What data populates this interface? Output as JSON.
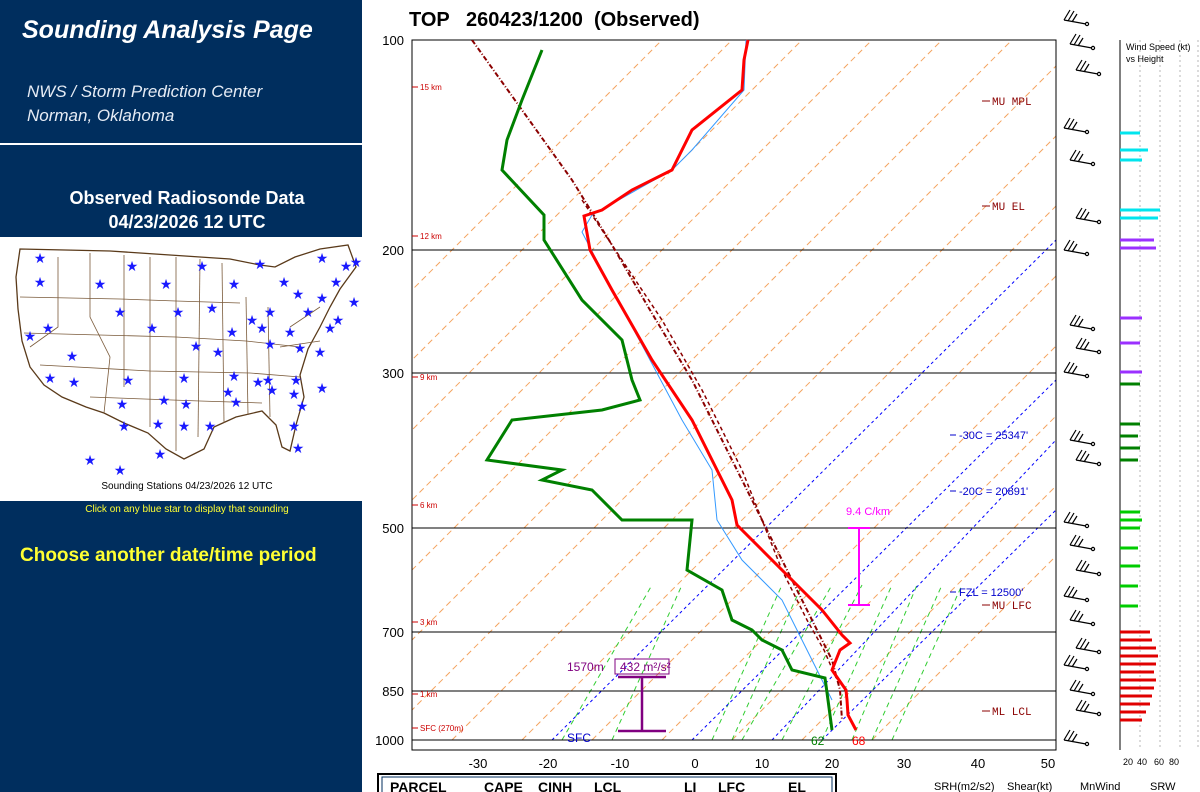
{
  "sidebar": {
    "app_title": "Sounding Analysis Page",
    "org_line1": "NWS / Storm Prediction Center",
    "org_line2": "Norman, Oklahoma",
    "data_title_line1": "Observed Radiosonde Data",
    "data_title_line2": "04/23/2026 12 UTC",
    "map_caption": "Sounding Stations 04/23/2026 12 UTC",
    "click_hint": "Click on any blue star to display that sounding",
    "choose_link": "Choose another date/time period",
    "station_icon": "blue-star-icon"
  },
  "skewt": {
    "title": "TOP   260423/1200  (Observed)",
    "pressure_labels": [
      "100",
      "200",
      "300",
      "500",
      "700",
      "850",
      "1000"
    ],
    "temp_labels": [
      "-30",
      "-20",
      "-10",
      "0",
      "10",
      "20",
      "30",
      "40",
      "50"
    ],
    "height_labels": [
      "15 km",
      "12 km",
      "9 km",
      "6 km",
      "3 km",
      "1 km",
      "SFC (270m)"
    ],
    "parcel_labels": {
      "mu_mpl": "MU MPL",
      "mu_el": "MU EL",
      "mu_lfc": "MU LFC",
      "ml_lcl": "ML LCL"
    },
    "freezing_levels": {
      "minus30": "-30C = 25347'",
      "minus20": "-20C = 20891'",
      "fzl": "FZL = 12500'"
    },
    "lapse_rate": "9.4 C/km",
    "srh_height": "1570m",
    "srh_value": "432 m²/s²",
    "sfc_label": "SFC",
    "sfc_dewpoint": "62",
    "sfc_temp": "68",
    "wind_profile_title_line1": "Wind Speed (kt)",
    "wind_profile_title_line2": "vs Height",
    "wind_axis_labels": [
      "20",
      "40",
      "60",
      "80"
    ],
    "table_headers": [
      "PARCEL",
      "CAPE",
      "CINH",
      "LCL",
      "LI",
      "LFC",
      "EL"
    ],
    "right_table_headers": [
      "SRH(m2/s2)",
      "Shear(kt)",
      "MnWind",
      "SRW"
    ],
    "colors": {
      "temperature": "#ff0000",
      "dewpoint": "#008000",
      "parcel": "#8b0000",
      "dry_adiabat": "#f4a460",
      "moist_adiabat": "#32cd32",
      "isotherm": "#0000ff",
      "srh": "#800080",
      "lapse": "#ff00ff"
    }
  }
}
